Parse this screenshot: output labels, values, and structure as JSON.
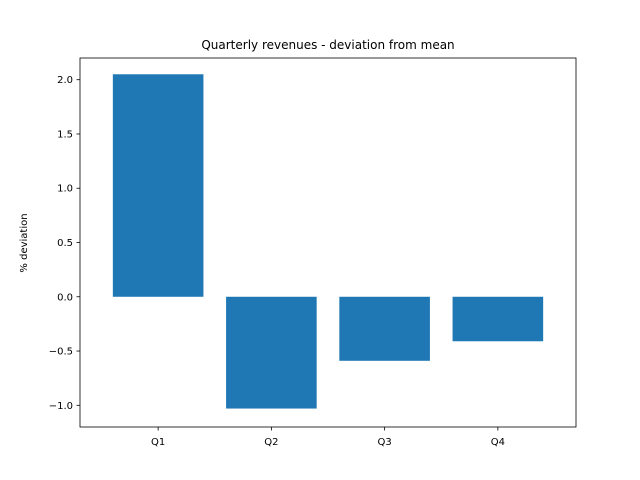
{
  "chart_data": {
    "type": "bar",
    "title": "Quarterly revenues - deviation from mean",
    "xlabel": "",
    "ylabel": "% deviation",
    "categories": [
      "Q1",
      "Q2",
      "Q3",
      "Q4"
    ],
    "values": [
      2.05,
      -1.03,
      -0.59,
      -0.41
    ],
    "ylim": [
      -1.2,
      2.2
    ],
    "yticks": [
      2.0,
      1.5,
      1.0,
      0.5,
      0.0,
      -0.5,
      -1.0
    ],
    "ytick_labels": [
      "2.0",
      "1.5",
      "1.0",
      "0.5",
      "0.0",
      "−0.5",
      "−1.0"
    ],
    "grid": false,
    "legend": "none",
    "bar_color": "#1f77b4"
  }
}
